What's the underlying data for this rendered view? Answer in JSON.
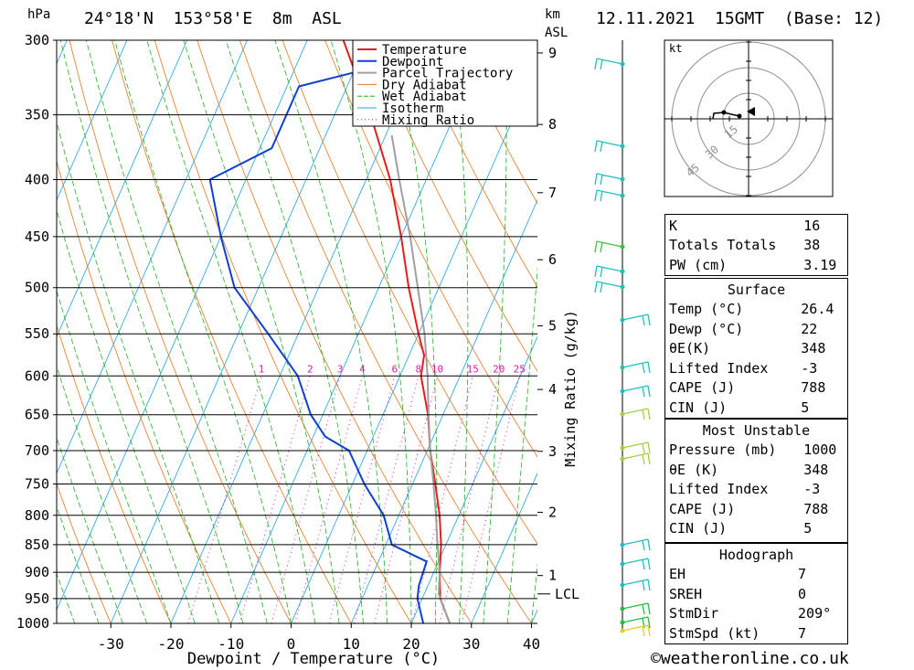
{
  "header": {
    "location": "24°18'N  153°58'E  8m  ASL",
    "datetime": "12.11.2021  15GMT  (Base: 12)",
    "hpa_label": "hPa",
    "km_label": "km",
    "asl_label": "ASL"
  },
  "chart_data": {
    "type": "line",
    "title": "24°18'N  153°58'E  8m  ASL",
    "xlabel": "Dewpoint / Temperature (°C)",
    "ylabel": "hPa",
    "right_label": "Mixing Ratio (g/kg)",
    "xlim": [
      -40,
      40
    ],
    "ylim": [
      1000,
      300
    ],
    "x_ticks": [
      -30,
      -20,
      -10,
      0,
      10,
      20,
      30,
      40
    ],
    "pressure_ticks": [
      300,
      350,
      400,
      450,
      500,
      550,
      600,
      650,
      700,
      750,
      800,
      850,
      900,
      950,
      1000
    ],
    "km_ticks": [
      {
        "label": "1",
        "p": 906
      },
      {
        "label": "2",
        "p": 795
      },
      {
        "label": "3",
        "p": 701
      },
      {
        "label": "4",
        "p": 617
      },
      {
        "label": "5",
        "p": 541
      },
      {
        "label": "6",
        "p": 472
      },
      {
        "label": "7",
        "p": 411
      },
      {
        "label": "8",
        "p": 357
      },
      {
        "label": "9",
        "p": 308
      }
    ],
    "lcl": {
      "label": "LCL",
      "p": 941
    },
    "mixing_ratio_labels": [
      "1",
      "2",
      "3",
      "4",
      "6",
      "8",
      "10",
      "15",
      "20",
      "25"
    ],
    "mixing_ratios": [
      1,
      2,
      3,
      4,
      6,
      8,
      10,
      15,
      20,
      25
    ],
    "legend": [
      "Temperature",
      "Dewpoint",
      "Parcel Trajectory",
      "Dry Adiabat",
      "Wet Adiabat",
      "Isotherm",
      "Mixing Ratio"
    ],
    "legend_placement": "top-center",
    "series": [
      {
        "name": "Temperature",
        "color": "#e02020",
        "points": [
          [
            1000,
            26.4
          ],
          [
            950,
            23
          ],
          [
            925,
            22
          ],
          [
            900,
            21
          ],
          [
            850,
            19.2
          ],
          [
            800,
            16.8
          ],
          [
            750,
            13.8
          ],
          [
            700,
            10.5
          ],
          [
            650,
            7.5
          ],
          [
            600,
            3.5
          ],
          [
            575,
            2.5
          ],
          [
            550,
            0
          ],
          [
            500,
            -5
          ],
          [
            450,
            -10
          ],
          [
            400,
            -16
          ],
          [
            350,
            -24
          ],
          [
            300,
            -34
          ]
        ]
      },
      {
        "name": "Dewpoint",
        "color": "#1040d0",
        "points": [
          [
            1000,
            22
          ],
          [
            950,
            19.2
          ],
          [
            925,
            18.5
          ],
          [
            880,
            18
          ],
          [
            850,
            11
          ],
          [
            800,
            7.5
          ],
          [
            750,
            2
          ],
          [
            700,
            -3
          ],
          [
            680,
            -8
          ],
          [
            650,
            -12
          ],
          [
            600,
            -17
          ],
          [
            550,
            -25
          ],
          [
            500,
            -34
          ],
          [
            450,
            -40
          ],
          [
            400,
            -46
          ],
          [
            375,
            -38
          ],
          [
            330,
            -38
          ],
          [
            300,
            -11
          ]
        ]
      },
      {
        "name": "Parcel Trajectory",
        "color": "#a0a0a0",
        "points": [
          [
            1000,
            26.4
          ],
          [
            941,
            22.4
          ],
          [
            900,
            21
          ],
          [
            850,
            18.6
          ],
          [
            800,
            16.2
          ],
          [
            750,
            13.5
          ],
          [
            700,
            10.5
          ],
          [
            650,
            7.6
          ],
          [
            600,
            4.6
          ],
          [
            550,
            1
          ],
          [
            500,
            -3.5
          ],
          [
            450,
            -8.5
          ],
          [
            400,
            -14.5
          ],
          [
            365,
            -19
          ]
        ]
      }
    ]
  },
  "hodograph": {
    "unit_label": "kt",
    "ring_labels": [
      "15",
      "30",
      "45"
    ]
  },
  "indices": {
    "k_label": "K",
    "k": "16",
    "tt_label": "Totals Totals",
    "tt": "38",
    "pw_label": "PW (cm)",
    "pw": "3.19"
  },
  "surface": {
    "title": "Surface",
    "temp_label": "Temp (°C)",
    "temp": "26.4",
    "dewp_label": "Dewp (°C)",
    "dewp": "22",
    "theta_label": "θE(K)",
    "theta": "348",
    "li_label": "Lifted Index",
    "li": "-3",
    "cape_label": "CAPE (J)",
    "cape": "788",
    "cin_label": "CIN (J)",
    "cin": "5"
  },
  "most_unstable": {
    "title": "Most Unstable",
    "pressure_label": "Pressure (mb)",
    "pressure": "1000",
    "theta_label": "θE (K)",
    "theta": "348",
    "li_label": "Lifted Index",
    "li": "-3",
    "cape_label": "CAPE (J)",
    "cape": "788",
    "cin_label": "CIN (J)",
    "cin": "5"
  },
  "hodograph_stats": {
    "title": "Hodograph",
    "eh_label": "EH",
    "eh": "7",
    "sreh_label": "SREH",
    "sreh": "0",
    "stmdir_label": "StmDir",
    "stmdir": "209°",
    "stmspd_label": "StmSpd (kt)",
    "stmspd": "7"
  },
  "copyright": "©weatheronline.co.uk",
  "colors": {
    "temperature": "#e02020",
    "dewpoint": "#1040d0",
    "parcel": "#a0a0a0",
    "dry_adiabat": "#e07820",
    "wet_adiabat": "#20b020",
    "isotherm": "#20a0e0",
    "mixing_ratio": "#d020b0"
  }
}
